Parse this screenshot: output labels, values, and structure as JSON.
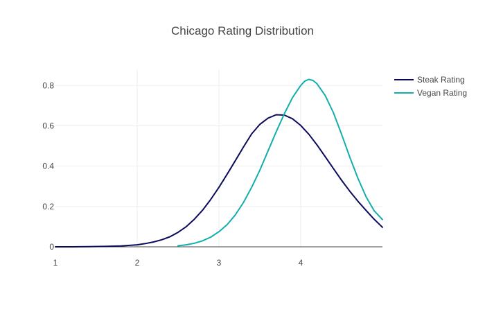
{
  "chart_data": {
    "type": "line",
    "title": "Chicago Rating Distribution",
    "xlabel": "",
    "ylabel": "",
    "xlim": [
      1,
      5
    ],
    "ylim": [
      0,
      0.88
    ],
    "x_ticks": [
      1,
      2,
      3,
      4
    ],
    "x_tick_labels": [
      "1",
      "2",
      "3",
      "4"
    ],
    "y_ticks": [
      0,
      0.2,
      0.4,
      0.6,
      0.8
    ],
    "y_tick_labels": [
      "0",
      "0.2",
      "0.4",
      "0.6",
      "0.8"
    ],
    "grid": true,
    "legend_position": "top-right",
    "series": [
      {
        "name": "Steak Rating",
        "color": "#0b0b5e",
        "x": [
          1.0,
          1.2,
          1.4,
          1.6,
          1.8,
          2.0,
          2.1,
          2.2,
          2.3,
          2.4,
          2.5,
          2.6,
          2.7,
          2.8,
          2.9,
          3.0,
          3.1,
          3.2,
          3.3,
          3.4,
          3.5,
          3.6,
          3.7,
          3.8,
          3.9,
          4.0,
          4.1,
          4.2,
          4.3,
          4.4,
          4.5,
          4.6,
          4.7,
          4.8,
          4.9,
          5.0
        ],
        "y": [
          0.0,
          0.0,
          0.001,
          0.002,
          0.004,
          0.01,
          0.016,
          0.024,
          0.035,
          0.05,
          0.072,
          0.1,
          0.137,
          0.182,
          0.235,
          0.295,
          0.36,
          0.427,
          0.495,
          0.56,
          0.607,
          0.638,
          0.655,
          0.653,
          0.635,
          0.602,
          0.558,
          0.505,
          0.447,
          0.388,
          0.33,
          0.276,
          0.226,
          0.18,
          0.136,
          0.097
        ]
      },
      {
        "name": "Vegan Rating",
        "color": "#12adad",
        "x": [
          2.5,
          2.6,
          2.7,
          2.8,
          2.9,
          3.0,
          3.1,
          3.2,
          3.3,
          3.4,
          3.5,
          3.6,
          3.7,
          3.8,
          3.9,
          4.0,
          4.05,
          4.1,
          4.15,
          4.2,
          4.3,
          4.4,
          4.5,
          4.6,
          4.7,
          4.8,
          4.9,
          5.0
        ],
        "y": [
          0.005,
          0.01,
          0.018,
          0.03,
          0.048,
          0.075,
          0.11,
          0.158,
          0.22,
          0.295,
          0.38,
          0.475,
          0.57,
          0.66,
          0.74,
          0.8,
          0.822,
          0.83,
          0.825,
          0.808,
          0.75,
          0.665,
          0.558,
          0.445,
          0.34,
          0.248,
          0.178,
          0.135
        ]
      }
    ]
  }
}
